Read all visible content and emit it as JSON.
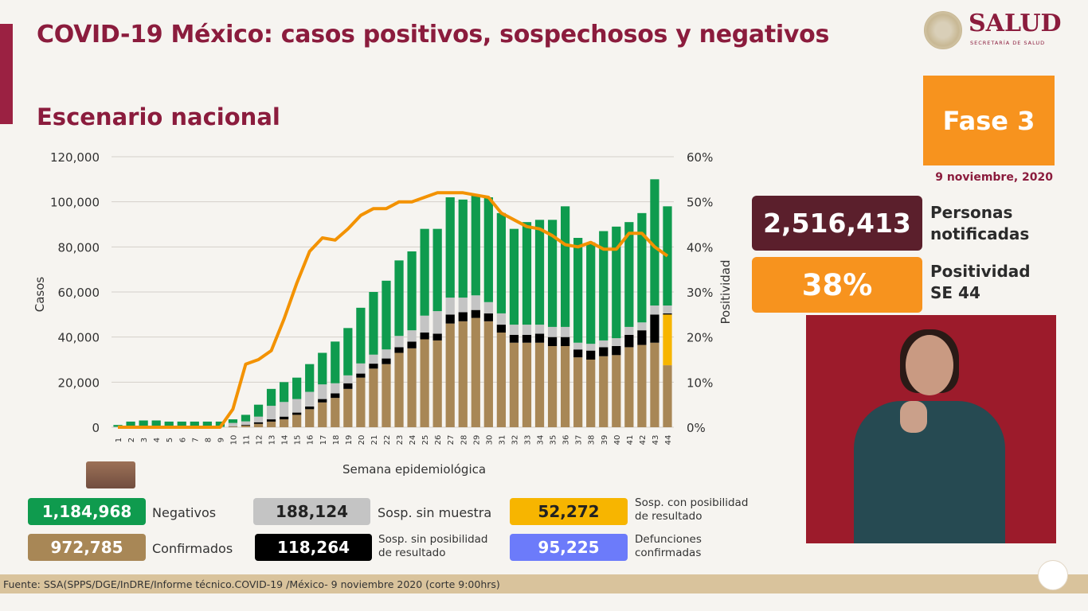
{
  "header": {
    "title": "COVID-19 México: casos positivos, sospechosos y negativos",
    "subtitle": "Escenario nacional",
    "logo_text": "SALUD",
    "logo_subtext": "SECRETARÍA DE SALUD"
  },
  "side": {
    "phase": "Fase 3",
    "date": "9 noviembre, 2020",
    "notified_value": "2,516,413",
    "notified_label_1": "Personas",
    "notified_label_2": "notificadas",
    "positivity_value": "38%",
    "positivity_label_1": "Positividad",
    "positivity_label_2": "SE 44"
  },
  "legend": {
    "negatives": {
      "value": "1,184,968",
      "label": "Negativos",
      "color": "#0f9b4e"
    },
    "confirmed": {
      "value": "972,785",
      "label": "Confirmados",
      "color": "#a88756"
    },
    "no_sample": {
      "value": "188,124",
      "label": "Sosp. sin muestra",
      "color": "#c4c4c4"
    },
    "no_result_possible": {
      "value": "118,264",
      "label_1": "Sosp. sin posibilidad",
      "label_2": "de resultado",
      "color": "#000000"
    },
    "result_possible": {
      "value": "52,272",
      "label_1": "Sosp. con posibilidad",
      "label_2": "de resultado",
      "color": "#f7b500"
    },
    "deaths": {
      "value": "95,225",
      "label_1": "Defunciones",
      "label_2": "confirmadas",
      "color": "#6c7bfa"
    }
  },
  "footer": {
    "source": "Fuente: SSA(SPPS/DGE/InDRE/Informe técnico.COVID-19 /México- 9 noviembre 2020 (corte 9:00hrs)"
  },
  "chart_data": {
    "type": "bar",
    "stacked": true,
    "xlabel": "Semana epidemiológica",
    "ylabel": "Casos",
    "y2label": "Positividad",
    "ylim": [
      0,
      120000
    ],
    "y2lim": [
      0,
      60
    ],
    "yticks": [
      "0",
      "20,000",
      "40,000",
      "60,000",
      "80,000",
      "100,000",
      "120,000"
    ],
    "y2ticks": [
      "0%",
      "10%",
      "20%",
      "30%",
      "40%",
      "50%",
      "60%"
    ],
    "grid": true,
    "categories": [
      "1",
      "2",
      "3",
      "4",
      "5",
      "6",
      "7",
      "8",
      "9",
      "10",
      "11",
      "12",
      "13",
      "14",
      "15",
      "16",
      "17",
      "18",
      "19",
      "20",
      "21",
      "22",
      "23",
      "24",
      "25",
      "26",
      "27",
      "28",
      "29",
      "30",
      "31",
      "32",
      "33",
      "34",
      "35",
      "36",
      "37",
      "38",
      "39",
      "40",
      "41",
      "42",
      "43",
      "44"
    ],
    "series": [
      {
        "name": "Confirmados",
        "color": "#a88756",
        "values": [
          0,
          0,
          0,
          0,
          0,
          0,
          0,
          0,
          0,
          300,
          800,
          1500,
          2500,
          3500,
          5500,
          8000,
          11000,
          13000,
          17000,
          22000,
          26000,
          28000,
          33000,
          35000,
          39000,
          38500,
          46000,
          47000,
          48500,
          47000,
          42000,
          37500,
          37500,
          37500,
          36000,
          36000,
          31000,
          30000,
          31500,
          32000,
          35500,
          36500,
          37500,
          27500
        ]
      },
      {
        "name": "Sosp. con posibilidad de resultado",
        "color": "#f7b500",
        "values": [
          0,
          0,
          0,
          0,
          0,
          0,
          0,
          0,
          0,
          0,
          0,
          0,
          0,
          0,
          0,
          0,
          0,
          0,
          0,
          0,
          0,
          0,
          0,
          0,
          0,
          0,
          0,
          0,
          0,
          0,
          0,
          0,
          0,
          0,
          0,
          0,
          0,
          0,
          0,
          0,
          0,
          0,
          0,
          22500
        ]
      },
      {
        "name": "Sosp. sin posibilidad de resultado",
        "color": "#000000",
        "values": [
          0,
          0,
          0,
          0,
          0,
          0,
          0,
          0,
          0,
          100,
          300,
          700,
          1000,
          1200,
          1000,
          1200,
          1500,
          2000,
          2500,
          1800,
          2200,
          2500,
          2500,
          3000,
          3000,
          3000,
          4000,
          4000,
          3500,
          3500,
          3500,
          3500,
          3500,
          4000,
          4000,
          4000,
          3500,
          4000,
          4000,
          4000,
          5500,
          6500,
          12500,
          500
        ]
      },
      {
        "name": "Sosp. sin muestra",
        "color": "#c4c4c4",
        "values": [
          200,
          200,
          200,
          200,
          200,
          200,
          200,
          200,
          200,
          1500,
          1500,
          2500,
          6000,
          6500,
          6000,
          6500,
          6500,
          4500,
          3500,
          4500,
          4000,
          4000,
          5000,
          5000,
          7500,
          10000,
          7500,
          6500,
          6500,
          5000,
          5000,
          4500,
          4500,
          4000,
          4500,
          4500,
          3000,
          3000,
          3000,
          3500,
          3500,
          3500,
          4000,
          3500
        ]
      },
      {
        "name": "Negativos",
        "color": "#0f9b4e",
        "values": [
          800,
          2300,
          2800,
          2800,
          2300,
          2300,
          2300,
          2300,
          2300,
          1600,
          2900,
          5300,
          7500,
          8800,
          9500,
          12300,
          14000,
          18500,
          21000,
          24700,
          27800,
          30500,
          33500,
          35000,
          38500,
          36500,
          44500,
          43500,
          44500,
          46500,
          44500,
          42500,
          45500,
          46500,
          47500,
          53500,
          46500,
          45000,
          48500,
          49500,
          46500,
          48500,
          56000,
          44000
        ]
      }
    ],
    "line": {
      "name": "Positividad",
      "axis": "right",
      "color": "#f39200",
      "values": [
        0,
        0,
        0,
        0,
        0,
        0,
        0,
        0,
        0,
        4,
        14,
        15,
        17,
        24,
        32,
        39,
        42,
        41.5,
        44,
        47,
        48.5,
        48.5,
        50,
        50,
        51,
        52,
        52,
        52,
        51.5,
        51,
        47.5,
        46,
        44.5,
        44,
        42.5,
        40.5,
        40,
        41,
        39.5,
        39.5,
        43,
        43,
        40,
        38
      ]
    }
  }
}
